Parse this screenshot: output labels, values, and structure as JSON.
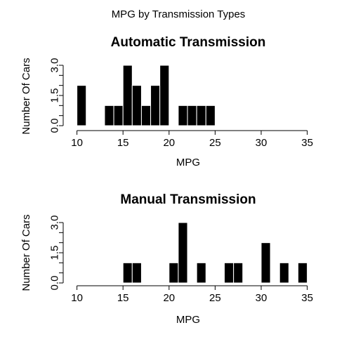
{
  "title": "MPG by Transmission Types",
  "chart_data": [
    {
      "type": "bar",
      "title": "Automatic Transmission",
      "xlabel": "MPG",
      "ylabel": "Number Of Cars",
      "xlim": [
        9.5,
        35
      ],
      "ylim": [
        0,
        3
      ],
      "xticks": [
        10,
        15,
        20,
        25,
        30,
        35
      ],
      "xtick_labels": [
        "10",
        "15",
        "20",
        "25",
        "30",
        "35"
      ],
      "yticks": [
        0,
        0.5,
        1,
        1.5,
        2,
        2.5,
        3
      ],
      "ytick_labels": [
        "0.0",
        "",
        "",
        "1.5",
        "",
        "",
        "3.0"
      ],
      "bin_width": 1,
      "bins": [
        {
          "start": 10,
          "count": 2
        },
        {
          "start": 13,
          "count": 1
        },
        {
          "start": 14,
          "count": 1
        },
        {
          "start": 15,
          "count": 3
        },
        {
          "start": 16,
          "count": 2
        },
        {
          "start": 17,
          "count": 1
        },
        {
          "start": 18,
          "count": 2
        },
        {
          "start": 19,
          "count": 3
        },
        {
          "start": 21,
          "count": 1
        },
        {
          "start": 22,
          "count": 1
        },
        {
          "start": 23,
          "count": 1
        },
        {
          "start": 24,
          "count": 1
        }
      ]
    },
    {
      "type": "bar",
      "title": "Manual Transmission",
      "xlabel": "MPG",
      "ylabel": "Number Of Cars",
      "xlim": [
        10,
        35
      ],
      "ylim": [
        0,
        3
      ],
      "xticks": [
        10,
        15,
        20,
        25,
        30,
        35
      ],
      "xtick_labels": [
        "10",
        "15",
        "20",
        "25",
        "30",
        "35"
      ],
      "yticks": [
        0,
        0.5,
        1,
        1.5,
        2,
        2.5,
        3
      ],
      "ytick_labels": [
        "0.0",
        "",
        "",
        "1.5",
        "",
        "",
        "3.0"
      ],
      "bin_width": 1,
      "bins": [
        {
          "start": 15,
          "count": 1
        },
        {
          "start": 16,
          "count": 1
        },
        {
          "start": 20,
          "count": 1
        },
        {
          "start": 21,
          "count": 3
        },
        {
          "start": 23,
          "count": 1
        },
        {
          "start": 26,
          "count": 1
        },
        {
          "start": 27,
          "count": 1
        },
        {
          "start": 30,
          "count": 2
        },
        {
          "start": 32,
          "count": 1
        },
        {
          "start": 34,
          "count": 1
        }
      ]
    }
  ]
}
